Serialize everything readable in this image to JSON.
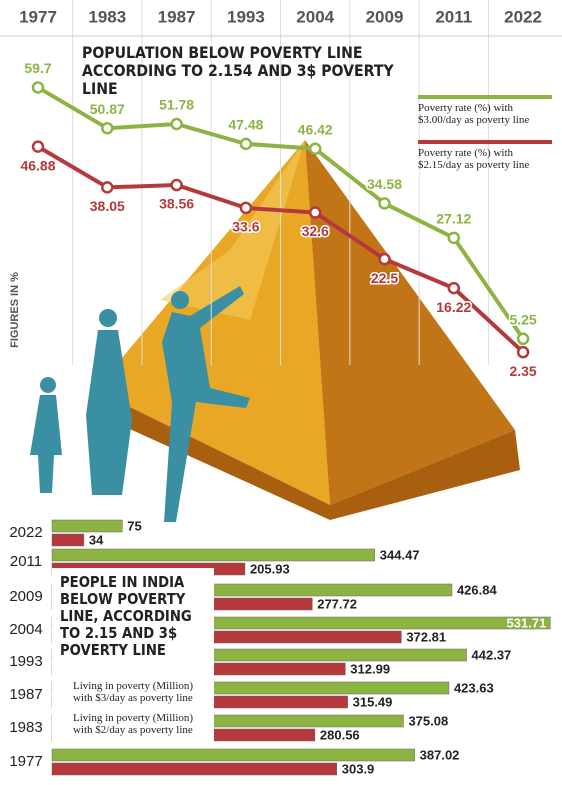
{
  "chart_data": [
    {
      "type": "line",
      "title": "POPULATION BELOW POVERTY LINE ACCORDING TO 2.154 AND 3$ POVERTY LINE",
      "y_label": "FIGURES IN %",
      "categories": [
        "1977",
        "1983",
        "1987",
        "1993",
        "2004",
        "2009",
        "2011",
        "2022"
      ],
      "ylim": [
        0,
        65
      ],
      "series": [
        {
          "name": "Poverty rate (%) with $3.00/day as poverty line",
          "color": "#8db443",
          "values": [
            59.7,
            50.87,
            51.78,
            47.48,
            46.42,
            34.58,
            27.12,
            5.25
          ]
        },
        {
          "name": "Poverty rate (%) with $2.15/day as poverty line",
          "color": "#b5393a",
          "values": [
            46.88,
            38.05,
            38.56,
            33.6,
            32.6,
            22.5,
            16.22,
            2.35
          ]
        }
      ]
    },
    {
      "type": "bar",
      "title": "PEOPLE IN INDIA BELOW POVERTY LINE, ACCORDING TO 2.15 AND 3$ POVERTY LINE",
      "categories": [
        "2022",
        "2011",
        "2009",
        "2004",
        "1993",
        "1987",
        "1983",
        "1977"
      ],
      "xlim": [
        0,
        540
      ],
      "series": [
        {
          "name": "Living in poverty (Million) with $3/day as poverty line",
          "color": "#8db443",
          "values": [
            75,
            344.47,
            426.84,
            531.71,
            442.37,
            423.63,
            375.08,
            387.02
          ]
        },
        {
          "name": "Living in poverty (Million) with $2/day as poverty line",
          "color": "#b5393a",
          "values": [
            34,
            205.93,
            277.72,
            372.81,
            312.99,
            315.49,
            280.56,
            303.9
          ]
        }
      ]
    }
  ]
}
